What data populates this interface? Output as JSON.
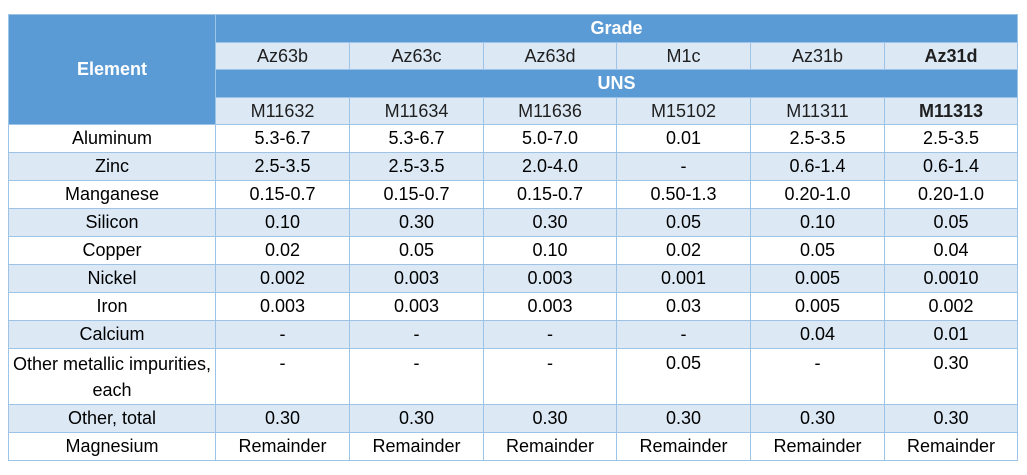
{
  "header": {
    "element_label": "Element",
    "grade_label": "Grade",
    "uns_label": "UNS",
    "grades": [
      "Az63b",
      "Az63c",
      "Az63d",
      "M1c",
      "Az31b",
      "Az31d"
    ],
    "uns": [
      "M11632",
      "M11634",
      "M11636",
      "M15102",
      "M11311",
      "M11313"
    ]
  },
  "rows": [
    {
      "element": "Aluminum",
      "values": [
        "5.3-6.7",
        "5.3-6.7",
        "5.0-7.0",
        "0.01",
        "2.5-3.5",
        "2.5-3.5"
      ]
    },
    {
      "element": "Zinc",
      "values": [
        "2.5-3.5",
        "2.5-3.5",
        "2.0-4.0",
        "-",
        "0.6-1.4",
        "0.6-1.4"
      ]
    },
    {
      "element": "Manganese",
      "values": [
        "0.15-0.7",
        "0.15-0.7",
        "0.15-0.7",
        "0.50-1.3",
        "0.20-1.0",
        "0.20-1.0"
      ]
    },
    {
      "element": "Silicon",
      "values": [
        "0.10",
        "0.30",
        "0.30",
        "0.05",
        "0.10",
        "0.05"
      ]
    },
    {
      "element": "Copper",
      "values": [
        "0.02",
        "0.05",
        "0.10",
        "0.02",
        "0.05",
        "0.04"
      ]
    },
    {
      "element": "Nickel",
      "values": [
        "0.002",
        "0.003",
        "0.003",
        "0.001",
        "0.005",
        "0.0010"
      ]
    },
    {
      "element": "Iron",
      "values": [
        "0.003",
        "0.003",
        "0.003",
        "0.03",
        "0.005",
        "0.002"
      ]
    },
    {
      "element": "Calcium",
      "values": [
        "-",
        "-",
        "-",
        "-",
        "0.04",
        "0.01"
      ]
    },
    {
      "element": "Other metallic impurities, each",
      "values": [
        "-",
        "-",
        "-",
        "0.05",
        "-",
        "0.30"
      ]
    },
    {
      "element": "Other, total",
      "values": [
        "0.30",
        "0.30",
        "0.30",
        "0.30",
        "0.30",
        "0.30"
      ]
    },
    {
      "element": "Magnesium",
      "values": [
        "Remainder",
        "Remainder",
        "Remainder",
        "Remainder",
        "Remainder",
        "Remainder"
      ]
    }
  ]
}
